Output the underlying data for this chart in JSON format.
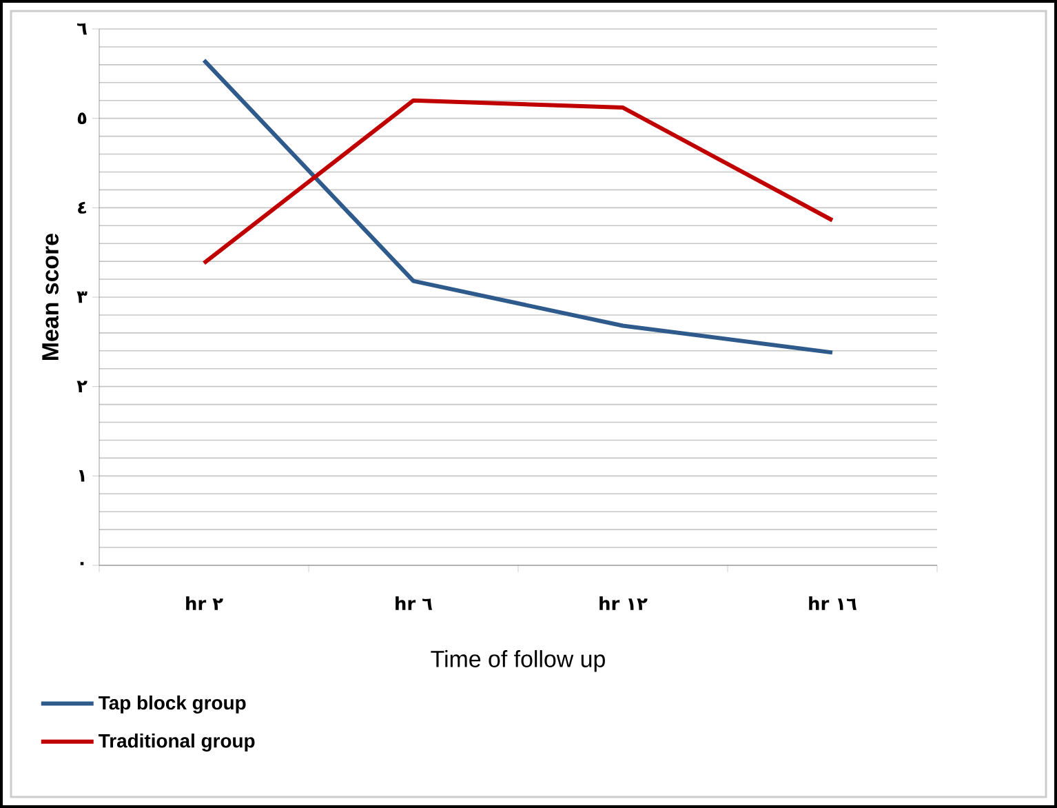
{
  "chart_data": {
    "type": "line",
    "xlabel": "Time of follow up",
    "ylabel": "Mean score",
    "categories": [
      "hr ٢",
      "hr ٦",
      "hr ١٢",
      "hr ١٦"
    ],
    "series": [
      {
        "name": "Tap block group",
        "color": "#2e5a8c",
        "values": [
          5.65,
          3.18,
          2.68,
          2.38
        ]
      },
      {
        "name": "Traditional group",
        "color": "#c00000",
        "values": [
          3.38,
          5.2,
          5.12,
          3.86
        ]
      }
    ],
    "ylim": [
      0,
      6
    ],
    "yticks": [
      {
        "value": 0,
        "label": "٠"
      },
      {
        "value": 1,
        "label": "١"
      },
      {
        "value": 2,
        "label": "٢"
      },
      {
        "value": 3,
        "label": "٣"
      },
      {
        "value": 4,
        "label": "٤"
      },
      {
        "value": 5,
        "label": "٥"
      },
      {
        "value": 6,
        "label": "٦"
      }
    ],
    "grid": "y",
    "legend": "bottom left",
    "marker": "none",
    "line_style": "solid"
  }
}
